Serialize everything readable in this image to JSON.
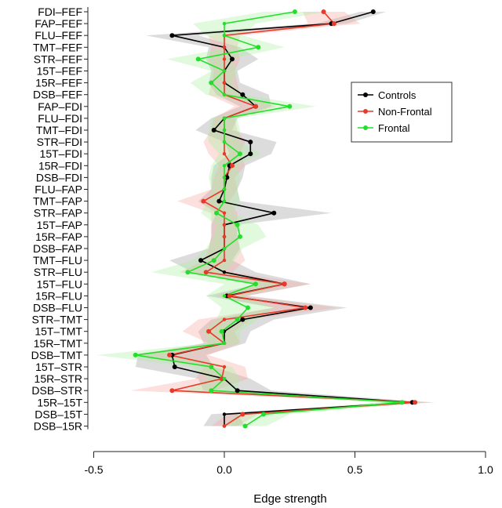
{
  "chart_data": {
    "type": "line",
    "orientation": "horizontal",
    "xlabel": "Edge strength",
    "xlim": [
      -0.5,
      1.0
    ],
    "xticks": [
      "-0.5",
      "0.0",
      "0.5",
      "1.0"
    ],
    "xtick_values": [
      -0.5,
      0.0,
      0.5,
      1.0
    ],
    "grid": false,
    "legend_position": "right",
    "categories": [
      "FDI–FEF",
      "FAP–FEF",
      "FLU–FEF",
      "TMT–FEF",
      "STR–FEF",
      "15T–FEF",
      "15R–FEF",
      "DSB–FEF",
      "FAP–FDI",
      "FLU–FDI",
      "TMT–FDI",
      "STR–FDI",
      "15T–FDI",
      "15R–FDI",
      "DSB–FDI",
      "FLU–FAP",
      "TMT–FAP",
      "STR–FAP",
      "15T–FAP",
      "15R–FAP",
      "DSB–FAP",
      "TMT–FLU",
      "STR–FLU",
      "15T–FLU",
      "15R–FLU",
      "DSB–FLU",
      "STR–TMT",
      "15T–TMT",
      "15R–TMT",
      "DSB–TMT",
      "15T–STR",
      "15R–STR",
      "DSB–STR",
      "15R–15T",
      "DSB–15T",
      "DSB–15R"
    ],
    "series": [
      {
        "name": "Controls",
        "color": "#000000",
        "band_color": "#9a9a9a",
        "values": [
          0.57,
          0.41,
          -0.2,
          0.0,
          0.03,
          0.0,
          0.0,
          0.07,
          0.12,
          0.0,
          -0.04,
          0.1,
          0.1,
          0.02,
          0.01,
          0.0,
          -0.02,
          0.19,
          0.0,
          0.0,
          0.0,
          -0.09,
          0.0,
          0.23,
          0.01,
          0.33,
          0.07,
          0.0,
          0.0,
          -0.2,
          -0.19,
          0.0,
          0.05,
          0.72,
          0.0,
          0.0
        ],
        "spread": [
          0.05,
          0.06,
          0.1,
          0.06,
          0.1,
          0.05,
          0.06,
          0.1,
          0.06,
          0.05,
          0.07,
          0.1,
          0.08,
          0.06,
          0.06,
          0.05,
          0.08,
          0.22,
          0.05,
          0.05,
          0.06,
          0.12,
          0.12,
          0.1,
          0.08,
          0.14,
          0.12,
          0.1,
          0.08,
          0.13,
          0.15,
          0.1,
          0.13,
          0.07,
          0.05,
          0.08
        ]
      },
      {
        "name": "Non-Frontal",
        "color": "#e8392a",
        "band_color": "#f3a6a0",
        "values": [
          0.38,
          0.42,
          0.0,
          0.0,
          0.0,
          0.0,
          0.0,
          0.0,
          0.12,
          0.0,
          0.0,
          0.0,
          0.0,
          0.03,
          0.0,
          0.0,
          -0.08,
          0.0,
          0.0,
          0.0,
          0.0,
          0.0,
          -0.07,
          0.23,
          0.02,
          0.31,
          0.0,
          -0.06,
          0.0,
          -0.21,
          0.0,
          -0.01,
          -0.2,
          0.73,
          0.07,
          0.0
        ],
        "spread": [
          0.08,
          0.1,
          0.06,
          0.05,
          0.06,
          0.04,
          0.05,
          0.06,
          0.08,
          0.04,
          0.05,
          0.08,
          0.06,
          0.05,
          0.04,
          0.05,
          0.1,
          0.05,
          0.05,
          0.05,
          0.06,
          0.08,
          0.1,
          0.1,
          0.06,
          0.12,
          0.1,
          0.1,
          0.06,
          0.15,
          0.08,
          0.1,
          0.16,
          0.08,
          0.06,
          0.05
        ]
      },
      {
        "name": "Frontal",
        "color": "#22e02a",
        "band_color": "#a8f0a0",
        "values": [
          0.27,
          0.0,
          0.0,
          0.13,
          -0.1,
          0.0,
          -0.05,
          0.0,
          0.25,
          0.0,
          0.0,
          0.0,
          0.06,
          0.0,
          0.0,
          0.0,
          0.0,
          -0.03,
          0.05,
          0.06,
          0.0,
          -0.04,
          -0.14,
          0.12,
          0.0,
          0.09,
          0.05,
          -0.01,
          0.0,
          -0.34,
          -0.05,
          0.0,
          -0.05,
          0.68,
          0.15,
          0.08
        ],
        "spread": [
          0.12,
          0.12,
          0.07,
          0.1,
          0.12,
          0.05,
          0.08,
          0.07,
          0.1,
          0.05,
          0.06,
          0.06,
          0.08,
          0.05,
          0.06,
          0.05,
          0.06,
          0.06,
          0.08,
          0.1,
          0.07,
          0.08,
          0.14,
          0.12,
          0.07,
          0.1,
          0.08,
          0.07,
          0.06,
          0.15,
          0.08,
          0.06,
          0.1,
          0.1,
          0.1,
          0.08
        ]
      }
    ]
  }
}
